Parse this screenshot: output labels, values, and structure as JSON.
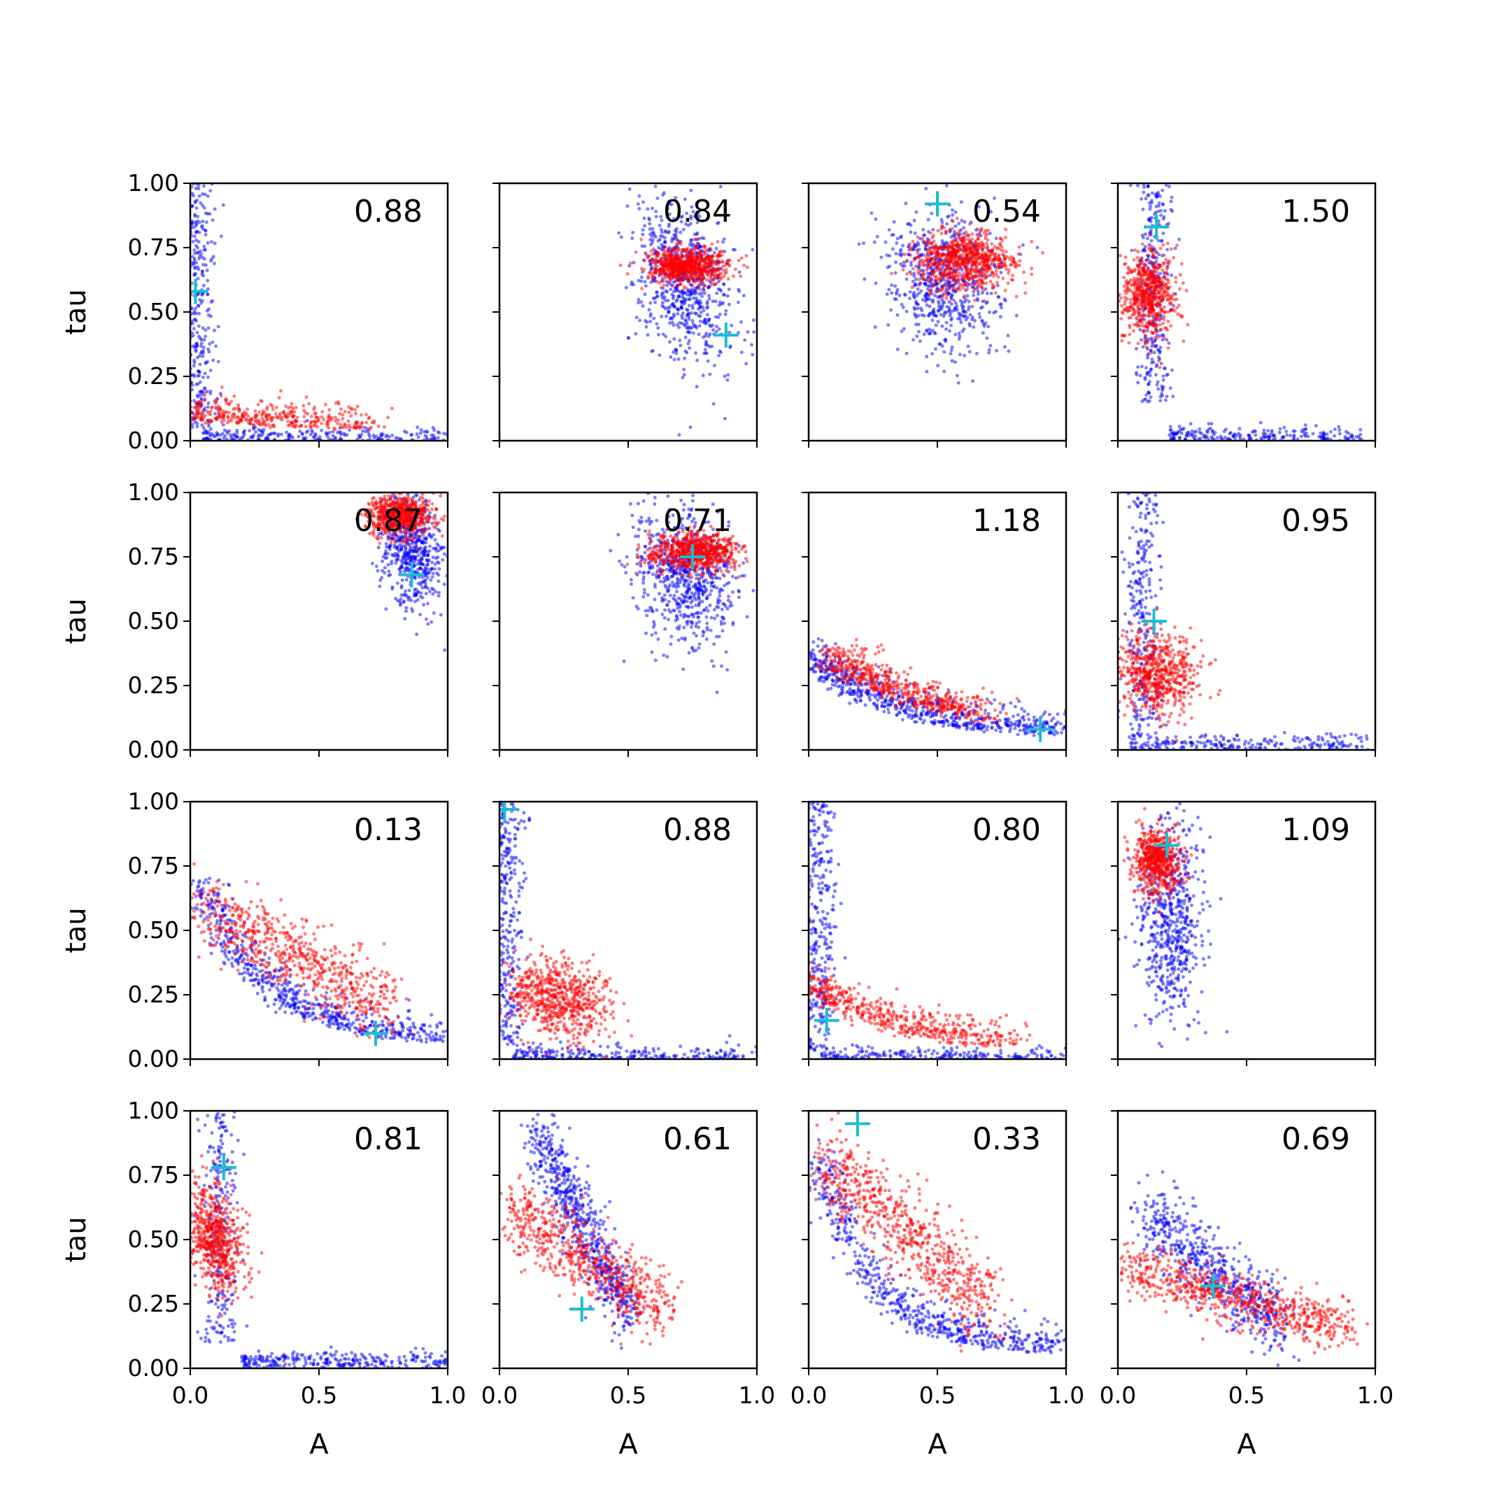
{
  "figure": {
    "background": "#ffffff",
    "grid": false,
    "legend": "none"
  },
  "chart_data": {
    "type": "scatter",
    "layout": "4x4 grid of scatter subplots",
    "xlabel": "A",
    "ylabel": "tau",
    "xlim": [
      0,
      1
    ],
    "ylim": [
      0,
      1
    ],
    "x_ticks": [
      0.0,
      0.5,
      1.0
    ],
    "x_tick_labels": [
      "0.0",
      "0.5",
      "1.0"
    ],
    "y_ticks": [
      0.0,
      0.25,
      0.5,
      0.75,
      1.0
    ],
    "y_tick_labels": [
      "0.00",
      "0.25",
      "0.50",
      "0.75",
      "1.00"
    ],
    "colors": {
      "blue_points": "#0000ff",
      "red_points": "#ff0000",
      "true_marker": "#17becf"
    },
    "panels": [
      {
        "label": "0.88",
        "marker": [
          0.02,
          0.58
        ],
        "blue": {
          "shape": "L",
          "vx": 0.035,
          "vyLo": 0.05,
          "vyHi": 1.0,
          "hy": 0.012,
          "hxLo": 0.05,
          "hxHi": 1.0,
          "n": 520
        },
        "red": {
          "shape": "curve",
          "a": 0.02,
          "b": 0.06,
          "c": 1.5,
          "xLo": 0.0,
          "xHi": 0.72,
          "sx": 0.05,
          "sy": 0.045,
          "n": 360
        }
      },
      {
        "label": "0.84",
        "marker": [
          0.88,
          0.41
        ],
        "blue": {
          "shape": "blob",
          "cx": 0.72,
          "cy": 0.62,
          "sx": 0.09,
          "sy": 0.16,
          "rho": -0.3,
          "n": 700
        },
        "red": {
          "shape": "blob",
          "cx": 0.73,
          "cy": 0.68,
          "sx": 0.08,
          "sy": 0.035,
          "rho": 0.0,
          "n": 700
        }
      },
      {
        "label": "0.54",
        "marker": [
          0.5,
          0.92
        ],
        "blue": {
          "shape": "blob",
          "cx": 0.53,
          "cy": 0.62,
          "sx": 0.11,
          "sy": 0.14,
          "rho": -0.1,
          "n": 650
        },
        "red": {
          "shape": "blob",
          "cx": 0.6,
          "cy": 0.7,
          "sx": 0.1,
          "sy": 0.06,
          "rho": 0.0,
          "n": 750
        }
      },
      {
        "label": "1.50",
        "marker": [
          0.15,
          0.83
        ],
        "blue": {
          "shape": "L",
          "vx": 0.14,
          "vyLo": 0.15,
          "vyHi": 1.0,
          "hy": 0.02,
          "hxLo": 0.2,
          "hxHi": 0.95,
          "n": 520
        },
        "red": {
          "shape": "blob",
          "cx": 0.12,
          "cy": 0.57,
          "sx": 0.05,
          "sy": 0.08,
          "rho": 0.0,
          "n": 600
        }
      },
      {
        "label": "0.87",
        "marker": [
          0.86,
          0.68
        ],
        "blue": {
          "shape": "blob",
          "cx": 0.86,
          "cy": 0.78,
          "sx": 0.06,
          "sy": 0.12,
          "rho": -0.3,
          "n": 550
        },
        "red": {
          "shape": "blob",
          "cx": 0.82,
          "cy": 0.91,
          "sx": 0.06,
          "sy": 0.04,
          "rho": 0.0,
          "n": 650
        }
      },
      {
        "label": "0.71",
        "marker": [
          0.75,
          0.75
        ],
        "blue": {
          "shape": "blob",
          "cx": 0.72,
          "cy": 0.68,
          "sx": 0.1,
          "sy": 0.13,
          "rho": -0.2,
          "n": 700
        },
        "red": {
          "shape": "blob",
          "cx": 0.76,
          "cy": 0.77,
          "sx": 0.08,
          "sy": 0.035,
          "rho": 0.0,
          "n": 700
        }
      },
      {
        "label": "1.18",
        "marker": [
          0.9,
          0.08
        ],
        "blue": {
          "shape": "curve",
          "a": 0.04,
          "b": 0.3,
          "c": 3.2,
          "xLo": 0.02,
          "xHi": 1.0,
          "sx": 0.04,
          "sy": 0.05,
          "n": 650
        },
        "red": {
          "shape": "curve",
          "a": 0.02,
          "b": 0.38,
          "c": 2.2,
          "xLo": 0.1,
          "xHi": 0.7,
          "sx": 0.05,
          "sy": 0.05,
          "n": 550
        }
      },
      {
        "label": "0.95",
        "marker": [
          0.14,
          0.5
        ],
        "blue": {
          "shape": "L",
          "vx": 0.1,
          "vyLo": 0.05,
          "vyHi": 1.0,
          "hy": 0.02,
          "hxLo": 0.05,
          "hxHi": 1.0,
          "n": 520
        },
        "red": {
          "shape": "blob",
          "cx": 0.15,
          "cy": 0.3,
          "sx": 0.08,
          "sy": 0.08,
          "rho": -0.1,
          "n": 600
        }
      },
      {
        "label": "0.13",
        "marker": [
          0.72,
          0.1
        ],
        "blue": {
          "shape": "curve",
          "a": 0.05,
          "b": 0.7,
          "c": 4.0,
          "xLo": 0.05,
          "xHi": 1.0,
          "sx": 0.04,
          "sy": 0.05,
          "n": 600
        },
        "red": {
          "shape": "line",
          "x0": 0.05,
          "y0": 0.58,
          "x1": 0.78,
          "y1": 0.2,
          "spread": 0.07,
          "n": 650
        }
      },
      {
        "label": "0.88",
        "marker": [
          0.02,
          0.97
        ],
        "blue": {
          "shape": "L",
          "vx": 0.03,
          "vyLo": 0.05,
          "vyHi": 1.0,
          "hy": 0.012,
          "hxLo": 0.05,
          "hxHi": 1.0,
          "n": 520
        },
        "red": {
          "shape": "blob",
          "cx": 0.23,
          "cy": 0.24,
          "sx": 0.1,
          "sy": 0.08,
          "rho": -0.2,
          "n": 650
        }
      },
      {
        "label": "0.80",
        "marker": [
          0.07,
          0.15
        ],
        "blue": {
          "shape": "L",
          "vx": 0.04,
          "vyLo": 0.02,
          "vyHi": 1.0,
          "hy": 0.01,
          "hxLo": 0.05,
          "hxHi": 1.0,
          "n": 500
        },
        "red": {
          "shape": "curve",
          "a": 0.02,
          "b": 0.25,
          "c": 3.0,
          "xLo": 0.0,
          "xHi": 0.8,
          "sx": 0.05,
          "sy": 0.05,
          "n": 500
        }
      },
      {
        "label": "1.09",
        "marker": [
          0.19,
          0.83
        ],
        "blue": {
          "shape": "blob",
          "cx": 0.2,
          "cy": 0.55,
          "sx": 0.06,
          "sy": 0.2,
          "rho": 0.0,
          "n": 600
        },
        "red": {
          "shape": "blob",
          "cx": 0.15,
          "cy": 0.77,
          "sx": 0.045,
          "sy": 0.06,
          "rho": 0.0,
          "n": 600
        }
      },
      {
        "label": "0.81",
        "marker": [
          0.13,
          0.78
        ],
        "blue": {
          "shape": "L",
          "vx": 0.12,
          "vyLo": 0.1,
          "vyHi": 1.0,
          "hy": 0.03,
          "hxLo": 0.2,
          "hxHi": 1.0,
          "n": 520
        },
        "red": {
          "shape": "blob",
          "cx": 0.1,
          "cy": 0.5,
          "sx": 0.06,
          "sy": 0.1,
          "rho": -0.3,
          "n": 600
        }
      },
      {
        "label": "0.61",
        "marker": [
          0.32,
          0.23
        ],
        "blue": {
          "shape": "line",
          "x0": 0.15,
          "y0": 0.92,
          "x1": 0.5,
          "y1": 0.2,
          "spread": 0.06,
          "n": 650
        },
        "red": {
          "shape": "line",
          "x0": 0.05,
          "y0": 0.62,
          "x1": 0.65,
          "y1": 0.22,
          "spread": 0.07,
          "n": 650
        }
      },
      {
        "label": "0.33",
        "marker": [
          0.19,
          0.95
        ],
        "blue": {
          "shape": "curve",
          "a": 0.05,
          "b": 0.9,
          "c": 5.0,
          "xLo": 0.05,
          "xHi": 1.0,
          "sx": 0.04,
          "sy": 0.06,
          "n": 600
        },
        "red": {
          "shape": "line",
          "x0": 0.05,
          "y0": 0.8,
          "x1": 0.7,
          "y1": 0.25,
          "spread": 0.08,
          "n": 700
        }
      },
      {
        "label": "0.69",
        "marker": [
          0.37,
          0.32
        ],
        "blue": {
          "shape": "line",
          "x0": 0.12,
          "y0": 0.6,
          "x1": 0.65,
          "y1": 0.15,
          "spread": 0.07,
          "n": 600
        },
        "red": {
          "shape": "line",
          "x0": 0.02,
          "y0": 0.4,
          "x1": 0.9,
          "y1": 0.15,
          "spread": 0.05,
          "n": 700
        }
      }
    ]
  }
}
